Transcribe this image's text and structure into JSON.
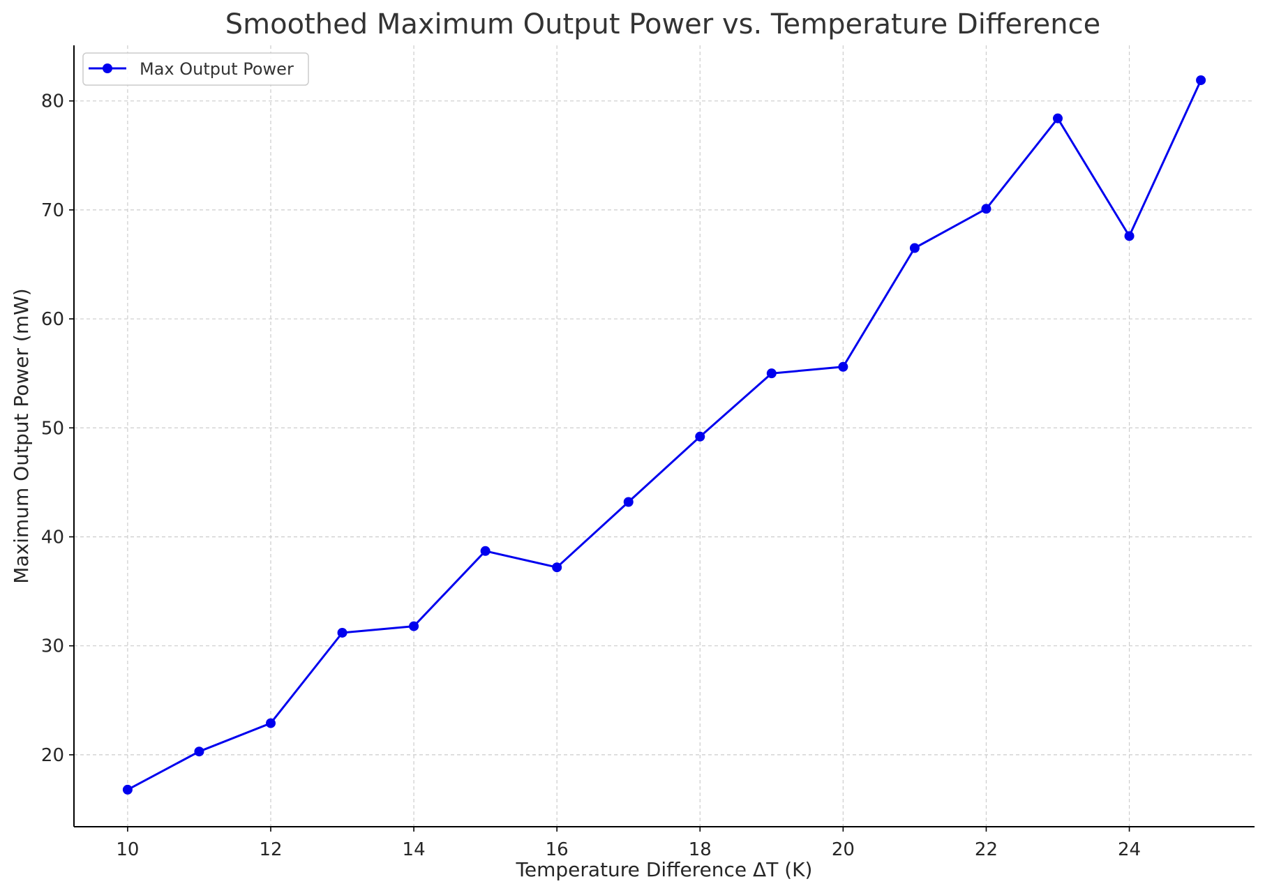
{
  "chart_data": {
    "type": "line",
    "title": "Smoothed Maximum Output Power vs. Temperature Difference",
    "xlabel": "Temperature Difference ΔT (K)",
    "ylabel": "Maximum Output Power (mW)",
    "xlim": [
      9.25,
      25.75
    ],
    "ylim": [
      13.4,
      85.1
    ],
    "xticks": [
      10,
      12,
      14,
      16,
      18,
      20,
      22,
      24
    ],
    "yticks": [
      20,
      30,
      40,
      50,
      60,
      70,
      80
    ],
    "grid": true,
    "legend_position": "upper-left",
    "series": [
      {
        "name": "Max Output Power",
        "color": "#0000ee",
        "marker": "circle",
        "x": [
          10,
          11,
          12,
          13,
          14,
          15,
          16,
          17,
          18,
          19,
          20,
          21,
          22,
          23,
          24,
          25
        ],
        "y": [
          16.8,
          20.3,
          22.9,
          31.2,
          31.8,
          38.7,
          37.2,
          43.2,
          49.2,
          55.0,
          55.6,
          66.5,
          70.1,
          78.4,
          67.6,
          81.9
        ]
      }
    ]
  }
}
